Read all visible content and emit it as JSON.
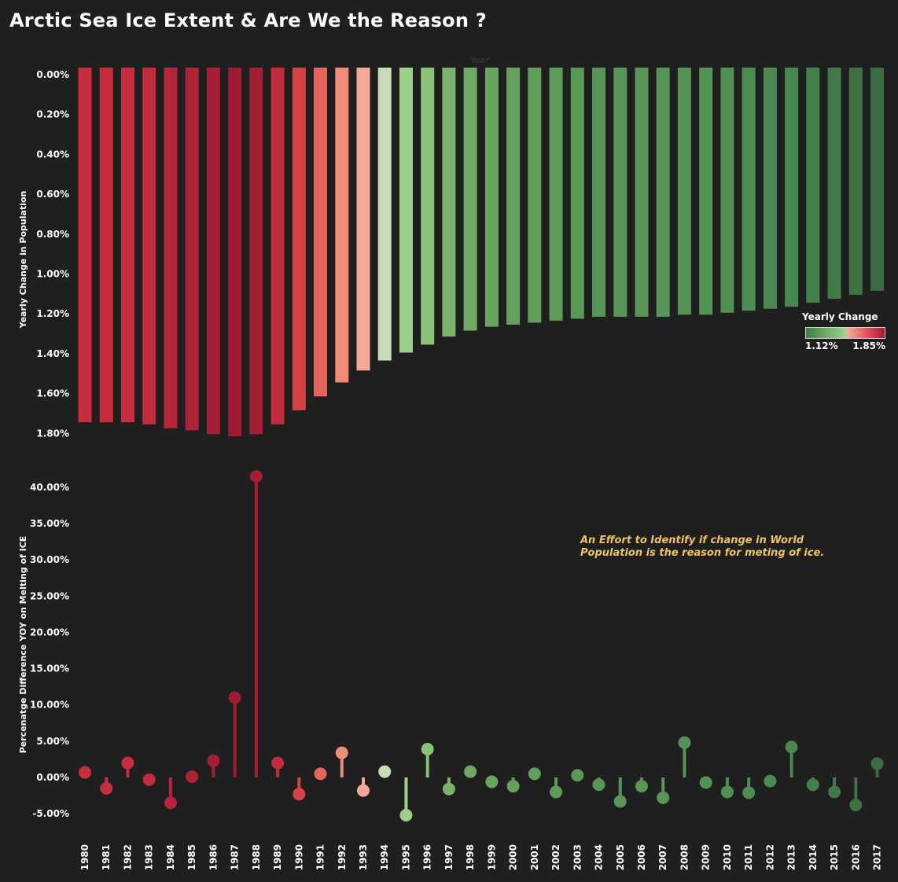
{
  "title": "Arctic Sea Ice Extent & Are We the Reason ?",
  "annotation": "An Effort to Identify if change in World Population is the reason for meting of ice.",
  "legend": {
    "title": "Yearly Change",
    "min_label": "1.12%",
    "max_label": "1.85%"
  },
  "colors": {
    "background": "#1f1f1f",
    "red_dark": "#9e1b32",
    "red": "#c62e40",
    "salmon": "#f2a898",
    "light_green": "#9ed48a",
    "green_dark": "#3b6b40",
    "annotation": "#f0c35a"
  },
  "chart_data": [
    {
      "type": "bar",
      "orientation": "inverted-y",
      "x_axis_title": "Year",
      "ylabel": "Yearly Change in Population",
      "ylim": [
        0,
        1.8
      ],
      "yticks": [
        "0.00%",
        "0.20%",
        "0.40%",
        "0.60%",
        "0.80%",
        "1.00%",
        "1.20%",
        "1.40%",
        "1.60%",
        "1.80%"
      ],
      "color_scale": {
        "min": 1.12,
        "max": 1.85
      },
      "categories": [
        "1980",
        "1981",
        "1982",
        "1983",
        "1984",
        "1985",
        "1986",
        "1987",
        "1988",
        "1989",
        "1990",
        "1991",
        "1992",
        "1993",
        "1994",
        "1995",
        "1996",
        "1997",
        "1998",
        "1999",
        "2000",
        "2001",
        "2002",
        "2003",
        "2004",
        "2005",
        "2006",
        "2007",
        "2008",
        "2009",
        "2010",
        "2011",
        "2012",
        "2013",
        "2014",
        "2015",
        "2016",
        "2017"
      ],
      "values": [
        1.78,
        1.78,
        1.78,
        1.79,
        1.81,
        1.82,
        1.84,
        1.85,
        1.84,
        1.79,
        1.72,
        1.65,
        1.58,
        1.52,
        1.47,
        1.43,
        1.39,
        1.35,
        1.32,
        1.3,
        1.29,
        1.28,
        1.27,
        1.26,
        1.25,
        1.25,
        1.25,
        1.25,
        1.24,
        1.24,
        1.23,
        1.22,
        1.21,
        1.2,
        1.18,
        1.16,
        1.14,
        1.12
      ]
    },
    {
      "type": "lollipop",
      "ylabel": "Percenatge Difference YOY on Melting of ICE",
      "ylim": [
        -5,
        40
      ],
      "yticks": [
        "40.00%",
        "35.00%",
        "30.00%",
        "25.00%",
        "20.00%",
        "15.00%",
        "10.00%",
        "5.00%",
        "0.00%",
        "-5.00%"
      ],
      "categories": [
        "1980",
        "1981",
        "1982",
        "1983",
        "1984",
        "1985",
        "1986",
        "1987",
        "1988",
        "1989",
        "1990",
        "1991",
        "1992",
        "1993",
        "1994",
        "1995",
        "1996",
        "1997",
        "1998",
        "1999",
        "2000",
        "2001",
        "2002",
        "2003",
        "2004",
        "2005",
        "2006",
        "2007",
        "2008",
        "2009",
        "2010",
        "2011",
        "2012",
        "2013",
        "2014",
        "2015",
        "2016",
        "2017"
      ],
      "values": [
        0.7,
        -1.5,
        2.0,
        -0.3,
        -3.5,
        0.1,
        2.3,
        11.0,
        41.5,
        2.0,
        -2.3,
        0.5,
        3.4,
        -1.8,
        0.8,
        -5.2,
        3.9,
        -1.6,
        0.8,
        -0.6,
        -1.2,
        0.5,
        -2.0,
        0.3,
        -1.0,
        -3.3,
        -1.2,
        -2.8,
        4.8,
        -0.7,
        -2.0,
        -2.1,
        -0.5,
        4.2,
        -1.0,
        -2.0,
        -3.8,
        1.9
      ]
    }
  ]
}
